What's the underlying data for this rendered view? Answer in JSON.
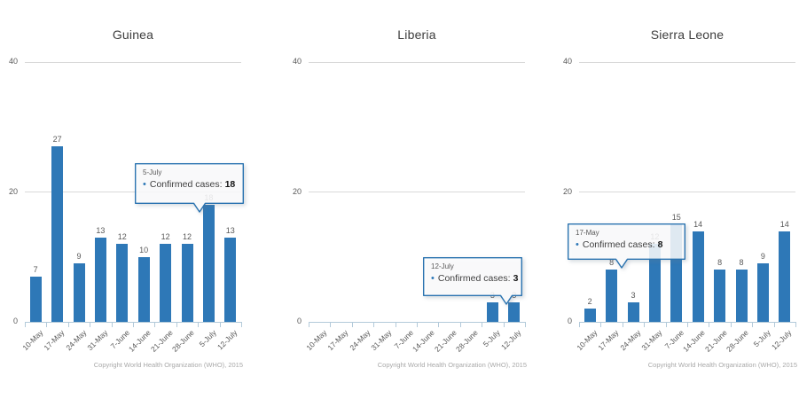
{
  "colors": {
    "bar": "#2e78b7",
    "gridline": "#d9d9d9",
    "axis_line": "#b3cada",
    "label_text": "#595959",
    "title_text": "#3d3d3d",
    "copyright_text": "#a9a9a9",
    "tooltip_border": "#2a73b0",
    "tooltip_fill": "rgba(255,255,255,0.84)"
  },
  "icons": {
    "marker_dot": "•"
  },
  "chart_data": [
    {
      "type": "bar",
      "title": "Guinea",
      "categories": [
        "10-May",
        "17-May",
        "24-May",
        "31-May",
        "7-June",
        "14-June",
        "21-June",
        "28-June",
        "5-July",
        "12-July"
      ],
      "values": [
        7,
        27,
        9,
        13,
        12,
        10,
        12,
        12,
        18,
        13
      ],
      "series_name": "Confirmed cases",
      "xlabel": "",
      "ylabel": "",
      "ylim": [
        0,
        40
      ],
      "yticks": [
        0,
        20,
        40
      ],
      "grid": "horizontal",
      "legend": "none",
      "data_labels": true,
      "footer": "Copyright World Health Organization (WHO), 2015",
      "tooltip": {
        "category": "5-July",
        "series_label": "Confirmed cases:",
        "value": 18
      }
    },
    {
      "type": "bar",
      "title": "Liberia",
      "categories": [
        "10-May",
        "17-May",
        "24-May",
        "31-May",
        "7-June",
        "14-June",
        "21-June",
        "28-June",
        "5-July",
        "12-July"
      ],
      "values": [
        0,
        0,
        0,
        0,
        0,
        0,
        0,
        0,
        3,
        3
      ],
      "series_name": "Confirmed cases",
      "xlabel": "",
      "ylabel": "",
      "ylim": [
        0,
        40
      ],
      "yticks": [
        0,
        20,
        40
      ],
      "grid": "horizontal",
      "legend": "none",
      "data_labels": true,
      "footer": "Copyright World Health Organization (WHO), 2015",
      "tooltip": {
        "category": "12-July",
        "series_label": "Confirmed cases:",
        "value": 3
      }
    },
    {
      "type": "bar",
      "title": "Sierra Leone",
      "categories": [
        "10-May",
        "17-May",
        "24-May",
        "31-May",
        "7-June",
        "14-June",
        "21-June",
        "28-June",
        "5-July",
        "12-July"
      ],
      "values": [
        2,
        8,
        3,
        12,
        15,
        14,
        8,
        8,
        9,
        14
      ],
      "series_name": "Confirmed cases",
      "xlabel": "",
      "ylabel": "",
      "ylim": [
        0,
        40
      ],
      "yticks": [
        0,
        20,
        40
      ],
      "grid": "horizontal",
      "legend": "none",
      "data_labels": true,
      "footer": "Copyright World Health Organization (WHO), 2015",
      "tooltip": {
        "category": "17-May",
        "series_label": "Confirmed cases:",
        "value": 8
      }
    }
  ]
}
